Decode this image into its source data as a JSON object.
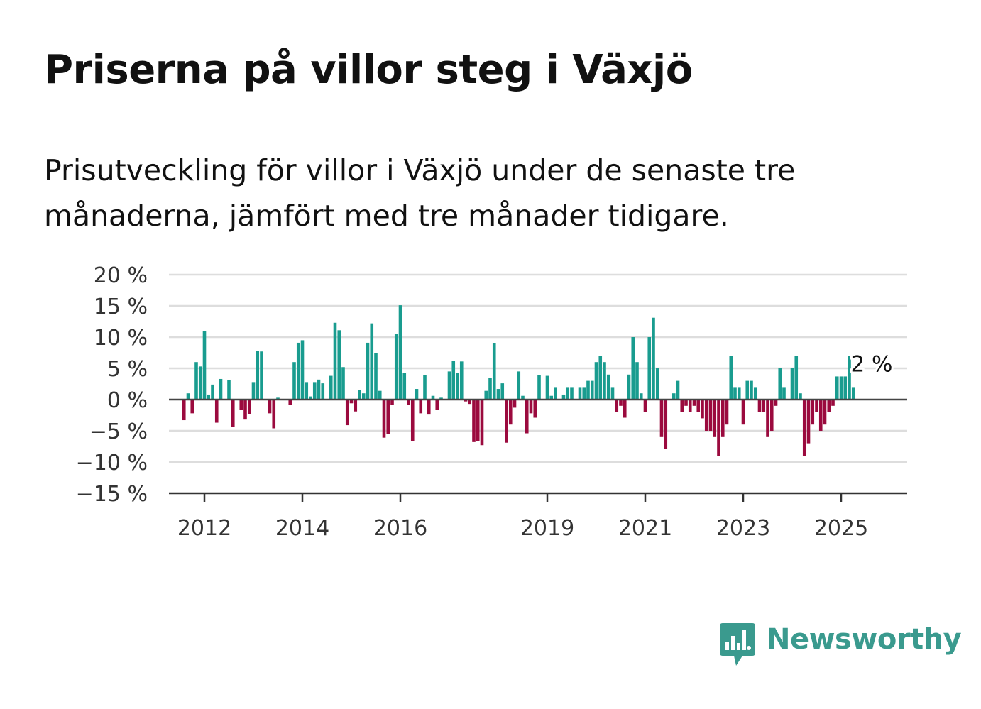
{
  "title": "Priserna på villor steg i Växjö",
  "subtitle": "Prisutveckling för villor i Växjö under de senaste tre månaderna, jämfört med tre månader tidigare.",
  "brand": {
    "name": "Newsworthy",
    "color": "#3a9a8e"
  },
  "chart_data": {
    "type": "bar",
    "x_start": "2011-08",
    "x_step": "month",
    "values": [
      -3.3,
      1.0,
      -2.2,
      6.0,
      5.3,
      11.0,
      0.8,
      2.4,
      -3.7,
      3.3,
      0,
      3.1,
      -4.4,
      0,
      -1.6,
      -3.2,
      -2.3,
      2.8,
      7.8,
      7.7,
      0,
      -2.2,
      -4.6,
      0.3,
      0,
      0,
      -0.9,
      6.0,
      9.1,
      9.5,
      2.8,
      0.5,
      2.8,
      3.2,
      2.6,
      0,
      3.8,
      12.3,
      11.1,
      5.2,
      -4.1,
      -0.6,
      -1.9,
      1.5,
      1.0,
      9.1,
      12.2,
      7.5,
      1.4,
      -6.1,
      -5.5,
      -0.8,
      10.5,
      15.1,
      4.3,
      -0.8,
      -6.6,
      1.7,
      -2.2,
      3.9,
      -2.4,
      0.6,
      -1.6,
      0.3,
      0,
      4.5,
      6.2,
      4.3,
      6.1,
      -0.3,
      -0.7,
      -6.8,
      -6.6,
      -7.3,
      1.4,
      3.5,
      9.0,
      1.7,
      2.6,
      -6.9,
      -4.0,
      -1.3,
      4.5,
      0.6,
      -5.4,
      -2.2,
      -2.9,
      3.9,
      0,
      3.8,
      0.6,
      2.0,
      0,
      0.8,
      2.0,
      2.0,
      0,
      2.0,
      2.0,
      3.0,
      3.0,
      6.0,
      7.0,
      6.0,
      4.0,
      2.0,
      -2.0,
      -1.0,
      -2.9,
      4.0,
      10.0,
      6.0,
      1.0,
      -2.0,
      10.0,
      13.1,
      5.0,
      -6.0,
      -7.9,
      0,
      1.0,
      3.0,
      -2.0,
      -1.0,
      -2.0,
      -1.0,
      -2.0,
      -3.0,
      -5.0,
      -5.0,
      -6.0,
      -9.0,
      -6.0,
      -4.0,
      7.0,
      2.0,
      2.0,
      -4.0,
      3.0,
      3.0,
      2.0,
      -2.0,
      -2.0,
      -6.0,
      -5.0,
      -1.0,
      5.0,
      2.0,
      0,
      5.0,
      7.0,
      1.0,
      -9.0,
      -7.0,
      -4.0,
      -2.0,
      -5.0,
      -4.0,
      -2.0,
      -1.0,
      3.7,
      3.7,
      3.7,
      7.0,
      2.0
    ],
    "x_ticks": [
      "2012",
      "2014",
      "2016",
      "2019",
      "2021",
      "2023",
      "2025"
    ],
    "x_tick_months": [
      "2012-01",
      "2014-01",
      "2016-01",
      "2019-01",
      "2021-01",
      "2023-01",
      "2025-01"
    ],
    "y_ticks": [
      "20 %",
      "15 %",
      "10 %",
      "5 %",
      "0 %",
      "−5 %",
      "−10 %",
      "−15 %"
    ],
    "y_tick_values": [
      20,
      15,
      10,
      5,
      0,
      -5,
      -10,
      -15
    ],
    "ylim": [
      -15,
      20
    ],
    "grid": true,
    "positive_color": "#199c8f",
    "negative_color": "#9b0a3e",
    "last_label": "2 %"
  }
}
